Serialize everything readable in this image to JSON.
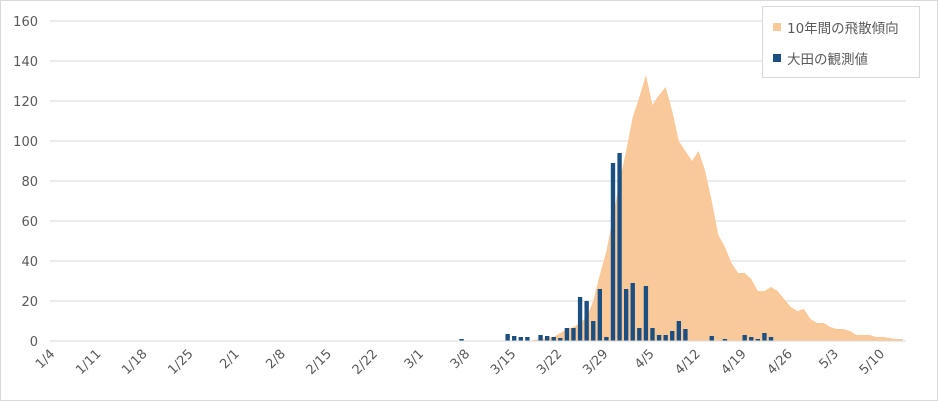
{
  "colors": {
    "area": "#f9c99a",
    "bar": "#1b4f82",
    "grid": "#d9d9d9",
    "axis_text": "#595959"
  },
  "legend": {
    "area_label": "10年間の飛散傾向",
    "bar_label": "大田の観測値"
  },
  "chart_data": {
    "type": "bar",
    "title": "",
    "xlabel": "",
    "ylabel": "",
    "ylim": [
      0,
      160
    ],
    "yticks": [
      0,
      20,
      40,
      60,
      80,
      100,
      120,
      140,
      160
    ],
    "grid": true,
    "legend_position": "top-right",
    "x_start": "1/4",
    "x_end": "5/13",
    "x_tick_labels": [
      "1/4",
      "1/11",
      "1/18",
      "1/25",
      "2/1",
      "2/8",
      "2/15",
      "2/22",
      "3/1",
      "3/8",
      "3/15",
      "3/22",
      "3/29",
      "4/5",
      "4/12",
      "4/19",
      "4/26",
      "5/3",
      "5/10"
    ],
    "series": [
      {
        "name": "10年間の飛散傾向",
        "type": "area",
        "points": [
          [
            "3/17",
            0
          ],
          [
            "3/18",
            0.5
          ],
          [
            "3/19",
            1
          ],
          [
            "3/20",
            1.5
          ],
          [
            "3/21",
            2
          ],
          [
            "3/22",
            4
          ],
          [
            "3/23",
            6
          ],
          [
            "3/24",
            7
          ],
          [
            "3/25",
            9
          ],
          [
            "3/26",
            12
          ],
          [
            "3/27",
            20
          ],
          [
            "3/28",
            33
          ],
          [
            "3/29",
            45
          ],
          [
            "3/30",
            62
          ],
          [
            "3/31",
            80
          ],
          [
            "4/1",
            95
          ],
          [
            "4/2",
            112
          ],
          [
            "4/3",
            122
          ],
          [
            "4/4",
            133
          ],
          [
            "4/5",
            118
          ],
          [
            "4/6",
            123
          ],
          [
            "4/7",
            127
          ],
          [
            "4/8",
            115
          ],
          [
            "4/9",
            100
          ],
          [
            "4/10",
            95
          ],
          [
            "4/11",
            90
          ],
          [
            "4/12",
            95
          ],
          [
            "4/13",
            85
          ],
          [
            "4/14",
            70
          ],
          [
            "4/15",
            53
          ],
          [
            "4/16",
            47
          ],
          [
            "4/17",
            39
          ],
          [
            "4/18",
            34
          ],
          [
            "4/19",
            34
          ],
          [
            "4/20",
            31
          ],
          [
            "4/21",
            25
          ],
          [
            "4/22",
            25
          ],
          [
            "4/23",
            27
          ],
          [
            "4/24",
            25
          ],
          [
            "4/25",
            21
          ],
          [
            "4/26",
            17
          ],
          [
            "4/27",
            15
          ],
          [
            "4/28",
            16
          ],
          [
            "4/29",
            11
          ],
          [
            "4/30",
            9
          ],
          [
            "5/1",
            9
          ],
          [
            "5/2",
            7
          ],
          [
            "5/3",
            6
          ],
          [
            "5/4",
            6
          ],
          [
            "5/5",
            5
          ],
          [
            "5/6",
            3
          ],
          [
            "5/7",
            3
          ],
          [
            "5/8",
            3
          ],
          [
            "5/9",
            2
          ],
          [
            "5/10",
            2
          ],
          [
            "5/11",
            1.5
          ],
          [
            "5/12",
            1
          ],
          [
            "5/13",
            1
          ]
        ]
      },
      {
        "name": "大田の観測値",
        "type": "bar",
        "points": [
          [
            "3/7",
            1
          ],
          [
            "3/14",
            3.5
          ],
          [
            "3/15",
            2.5
          ],
          [
            "3/16",
            2
          ],
          [
            "3/17",
            2
          ],
          [
            "3/19",
            3
          ],
          [
            "3/20",
            2.5
          ],
          [
            "3/21",
            2
          ],
          [
            "3/22",
            1.5
          ],
          [
            "3/23",
            6.5
          ],
          [
            "3/24",
            6.5
          ],
          [
            "3/25",
            22
          ],
          [
            "3/26",
            20
          ],
          [
            "3/27",
            10
          ],
          [
            "3/28",
            26
          ],
          [
            "3/29",
            2
          ],
          [
            "3/30",
            89
          ],
          [
            "3/31",
            94
          ],
          [
            "4/1",
            26
          ],
          [
            "4/2",
            29
          ],
          [
            "4/3",
            6.5
          ],
          [
            "4/4",
            27.5
          ],
          [
            "4/5",
            6.5
          ],
          [
            "4/6",
            3
          ],
          [
            "4/7",
            3
          ],
          [
            "4/8",
            5
          ],
          [
            "4/9",
            10
          ],
          [
            "4/10",
            6
          ],
          [
            "4/14",
            2.5
          ],
          [
            "4/16",
            1
          ],
          [
            "4/19",
            3
          ],
          [
            "4/20",
            2
          ],
          [
            "4/21",
            1
          ],
          [
            "4/22",
            4
          ],
          [
            "4/23",
            2
          ]
        ]
      }
    ]
  }
}
